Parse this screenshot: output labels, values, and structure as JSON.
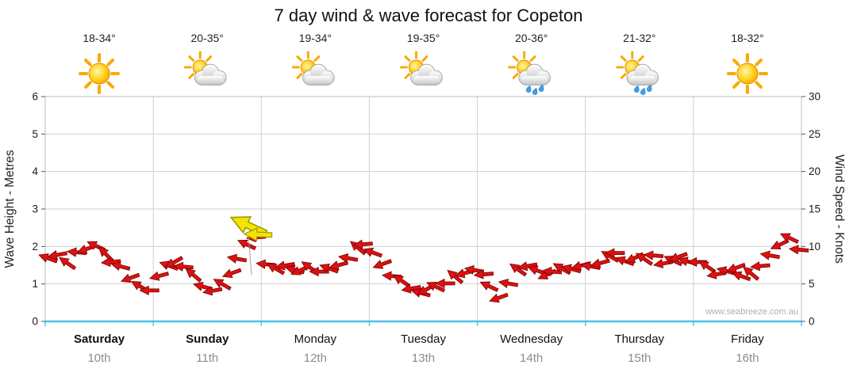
{
  "chart_data": {
    "type": "scatter",
    "title": "7 day wind & wave forecast for Copeton",
    "watermark": "www.seabreeze.com.au",
    "left_axis": {
      "label": "Wave Height - Metres",
      "ticks": [
        0,
        1,
        2,
        3,
        4,
        5,
        6
      ],
      "max": 6
    },
    "right_axis": {
      "label": "Wind Speed - Knots",
      "ticks": [
        0,
        5,
        10,
        15,
        20,
        25,
        30
      ],
      "max": 30
    },
    "days": [
      {
        "name": "Saturday",
        "date": "10th",
        "temp": "18-34°",
        "icon": "sun",
        "bold": true
      },
      {
        "name": "Sunday",
        "date": "11th",
        "temp": "20-35°",
        "icon": "sun-cloud",
        "bold": true
      },
      {
        "name": "Monday",
        "date": "12th",
        "temp": "19-34°",
        "icon": "sun-cloud",
        "bold": false
      },
      {
        "name": "Tuesday",
        "date": "13th",
        "temp": "19-35°",
        "icon": "sun-cloud",
        "bold": false
      },
      {
        "name": "Wednesday",
        "date": "14th",
        "temp": "20-36°",
        "icon": "sun-cloud-rain",
        "bold": false
      },
      {
        "name": "Thursday",
        "date": "15th",
        "temp": "21-32°",
        "icon": "sun-cloud-rain",
        "bold": false
      },
      {
        "name": "Friday",
        "date": "16th",
        "temp": "18-32°",
        "icon": "sun",
        "bold": false
      }
    ],
    "wind": {
      "samples_per_day": 12,
      "knots": [
        8,
        8.5,
        7.5,
        9,
        9.5,
        10,
        9,
        8,
        7.5,
        6,
        5,
        4.5,
        6.5,
        7,
        7.5,
        7,
        6,
        4.5,
        4,
        5,
        6.5,
        8.5,
        10.5,
        11.5,
        8,
        7.5,
        7,
        6.5,
        6.5,
        7,
        6.5,
        7,
        7.5,
        8.5,
        10,
        10.5,
        9.5,
        8,
        6.5,
        5,
        4,
        3.5,
        4,
        4.5,
        5,
        6,
        6.5,
        7,
        6.5,
        5,
        3.5,
        5.5,
        6.5,
        7,
        6.5,
        6,
        6.5,
        7,
        7,
        7.5,
        7.5,
        8,
        9,
        9.5,
        8.5,
        8,
        8,
        8.5,
        7.5,
        8,
        8.5,
        8,
        8,
        7.5,
        6.5,
        7,
        7.5,
        6.5,
        6,
        7,
        8.5,
        10,
        11,
        9.5
      ],
      "dir_deg": [
        200,
        170,
        215,
        185,
        160,
        205,
        225,
        175,
        195,
        160,
        210,
        180,
        165,
        200,
        150,
        185,
        220,
        195,
        170,
        210,
        160,
        190,
        205,
        175,
        185,
        210,
        170,
        195,
        155,
        215,
        180,
        200,
        165,
        190,
        220,
        175,
        200,
        160,
        185,
        215,
        170,
        195,
        150,
        205,
        180,
        220,
        165,
        190,
        175,
        205,
        160,
        190,
        215,
        170,
        200,
        155,
        185,
        210,
        195,
        165,
        190,
        165,
        210,
        180,
        200,
        155,
        215,
        185,
        170,
        205,
        160,
        195,
        180,
        215,
        170,
        195,
        160,
        200,
        220,
        175,
        190,
        155,
        205,
        185
      ]
    },
    "highlight_arrows": [
      {
        "day_frac": 1.88,
        "knots": 12.8,
        "dir_deg": 205,
        "scale": 2.0
      },
      {
        "day_frac": 1.97,
        "knots": 11.6,
        "dir_deg": 182,
        "scale": 1.45
      }
    ],
    "colors": {
      "arrow": "#DD1111",
      "arrow_stroke": "#7A0000",
      "highlight": "#F4E204",
      "highlight_stroke": "#9B9B00",
      "grid": "#D0D0D0",
      "border": "#BDBDBD",
      "bottom_axis": "#49C2E8",
      "text": "#1A1A1A",
      "date": "#8C8C8C",
      "watermark": "#AFAFAF"
    }
  }
}
